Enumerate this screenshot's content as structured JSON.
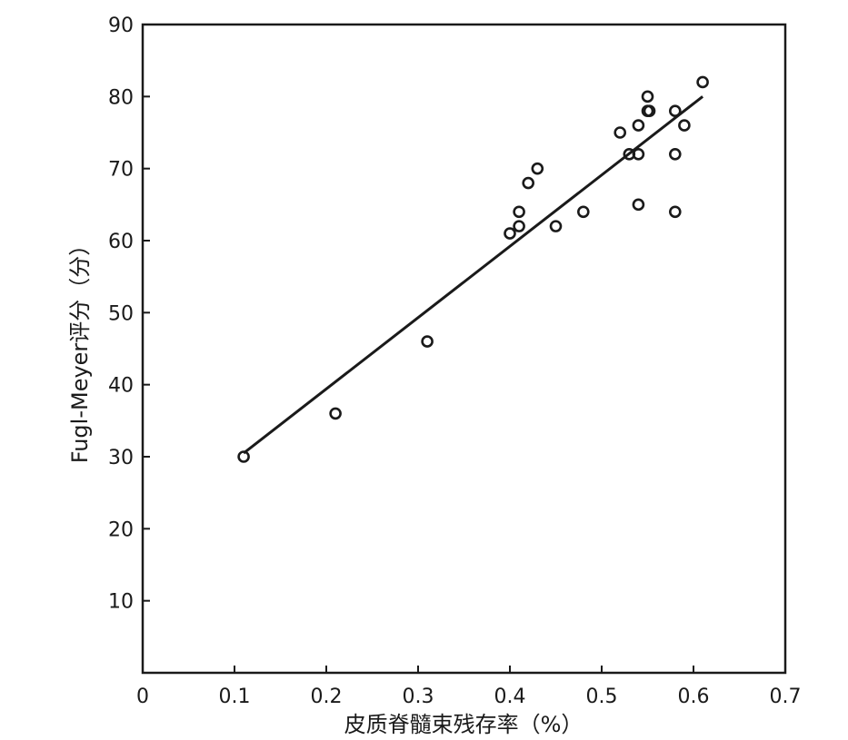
{
  "chart_data": {
    "type": "scatter",
    "title": "",
    "xlabel": "皮质脊髓束残存率（%）",
    "ylabel": "Fugl-Meyer评分（分）",
    "xlim": [
      0,
      0.7
    ],
    "ylim": [
      0,
      90
    ],
    "x_ticks": [
      "0",
      "0.1",
      "0.2",
      "0.3",
      "0.4",
      "0.5",
      "0.6",
      "0.7"
    ],
    "y_ticks": [
      "10",
      "20",
      "30",
      "40",
      "50",
      "60",
      "70",
      "80",
      "90"
    ],
    "grid": false,
    "legend": "none",
    "points": [
      {
        "x": 0.11,
        "y": 30
      },
      {
        "x": 0.21,
        "y": 36
      },
      {
        "x": 0.31,
        "y": 46
      },
      {
        "x": 0.4,
        "y": 61
      },
      {
        "x": 0.41,
        "y": 62
      },
      {
        "x": 0.41,
        "y": 64
      },
      {
        "x": 0.42,
        "y": 68
      },
      {
        "x": 0.43,
        "y": 70
      },
      {
        "x": 0.45,
        "y": 62
      },
      {
        "x": 0.48,
        "y": 64
      },
      {
        "x": 0.52,
        "y": 75
      },
      {
        "x": 0.53,
        "y": 72
      },
      {
        "x": 0.54,
        "y": 72
      },
      {
        "x": 0.54,
        "y": 76
      },
      {
        "x": 0.54,
        "y": 65
      },
      {
        "x": 0.55,
        "y": 78
      },
      {
        "x": 0.55,
        "y": 80
      },
      {
        "x": 0.552,
        "y": 78
      },
      {
        "x": 0.58,
        "y": 78
      },
      {
        "x": 0.58,
        "y": 72
      },
      {
        "x": 0.58,
        "y": 64
      },
      {
        "x": 0.59,
        "y": 76
      },
      {
        "x": 0.61,
        "y": 82
      }
    ],
    "fit_line": {
      "x": [
        0.11,
        0.61
      ],
      "y": [
        30.5,
        80
      ]
    },
    "colors": {
      "marks": "#1a1a1a",
      "background": "#ffffff"
    }
  }
}
